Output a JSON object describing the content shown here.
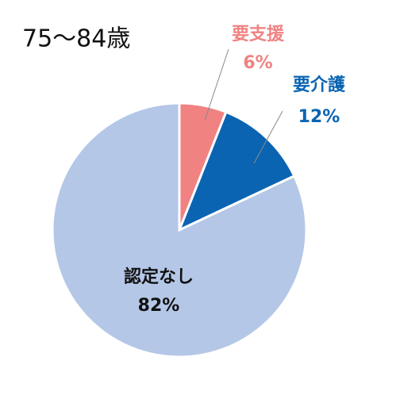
{
  "chart_data": {
    "type": "pie",
    "title": "75～84歳",
    "categories": [
      "要支援",
      "要介護",
      "認定なし"
    ],
    "values": [
      6,
      12,
      82
    ],
    "value_labels": [
      "6%",
      "12%",
      "82%"
    ],
    "colors": [
      "#f08282",
      "#0b64b2",
      "#b4c7e7"
    ]
  }
}
